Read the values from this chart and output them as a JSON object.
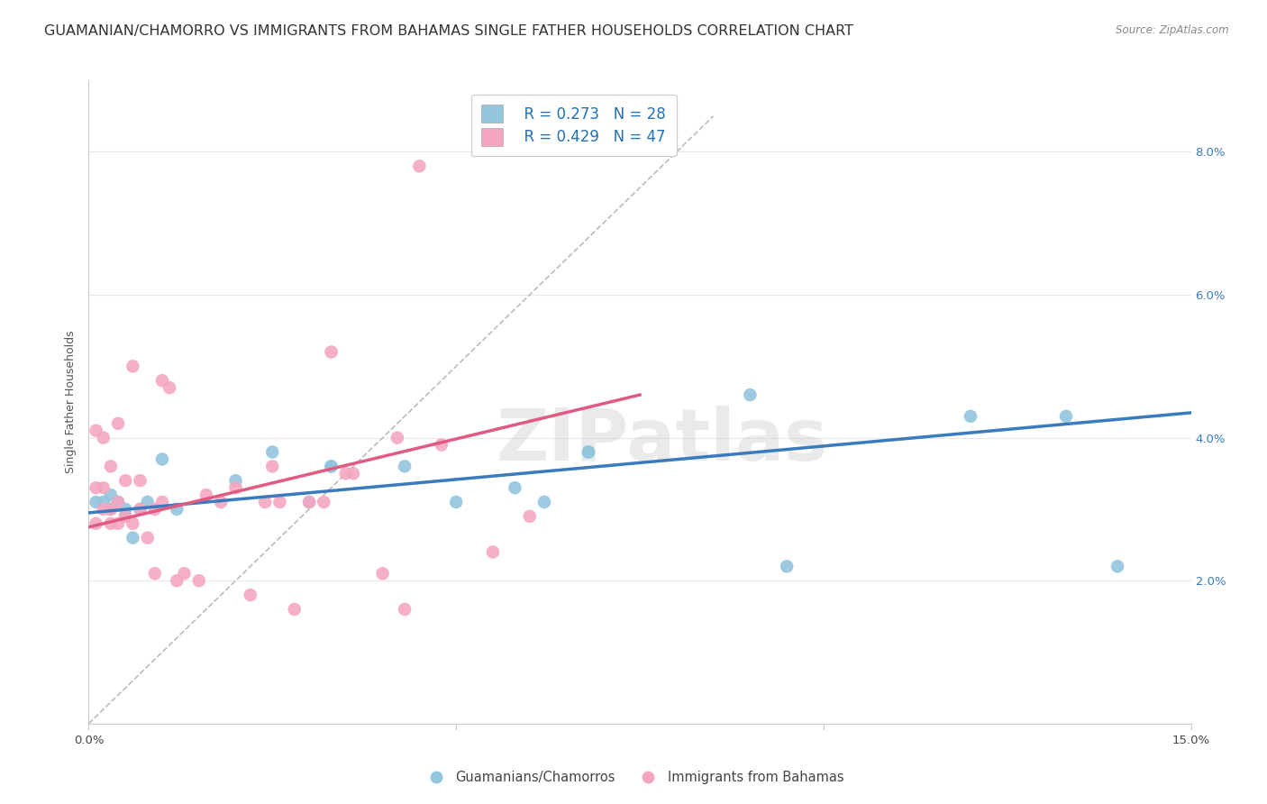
{
  "title": "GUAMANIAN/CHAMORRO VS IMMIGRANTS FROM BAHAMAS SINGLE FATHER HOUSEHOLDS CORRELATION CHART",
  "source": "Source: ZipAtlas.com",
  "ylabel": "Single Father Households",
  "xlim": [
    0.0,
    0.15
  ],
  "ylim": [
    0.0,
    0.09
  ],
  "blue_color": "#92c5de",
  "pink_color": "#f4a6c0",
  "blue_line_color": "#3a7bbf",
  "pink_line_color": "#e05a82",
  "diag_color": "#bbbbbb",
  "legend_blue_R": "R = 0.273",
  "legend_blue_N": "N = 28",
  "legend_pink_R": "R = 0.429",
  "legend_pink_N": "N = 47",
  "watermark": "ZIPatlas",
  "title_fontsize": 11.5,
  "label_fontsize": 9,
  "tick_fontsize": 9.5,
  "blue_scatter_x": [
    0.001,
    0.002,
    0.003,
    0.003,
    0.004,
    0.005,
    0.005,
    0.006,
    0.007,
    0.008,
    0.01,
    0.012,
    0.02,
    0.025,
    0.03,
    0.033,
    0.033,
    0.043,
    0.05,
    0.058,
    0.062,
    0.068,
    0.068,
    0.09,
    0.095,
    0.12,
    0.133,
    0.14
  ],
  "blue_scatter_y": [
    0.031,
    0.031,
    0.03,
    0.032,
    0.031,
    0.029,
    0.03,
    0.026,
    0.03,
    0.031,
    0.037,
    0.03,
    0.034,
    0.038,
    0.031,
    0.036,
    0.036,
    0.036,
    0.031,
    0.033,
    0.031,
    0.038,
    0.038,
    0.046,
    0.022,
    0.043,
    0.043,
    0.022
  ],
  "pink_scatter_x": [
    0.001,
    0.001,
    0.001,
    0.002,
    0.002,
    0.002,
    0.003,
    0.003,
    0.003,
    0.004,
    0.004,
    0.004,
    0.005,
    0.005,
    0.006,
    0.006,
    0.007,
    0.007,
    0.008,
    0.009,
    0.009,
    0.01,
    0.01,
    0.011,
    0.012,
    0.013,
    0.015,
    0.016,
    0.018,
    0.02,
    0.022,
    0.024,
    0.025,
    0.026,
    0.028,
    0.03,
    0.032,
    0.033,
    0.035,
    0.036,
    0.04,
    0.042,
    0.043,
    0.045,
    0.048,
    0.055,
    0.06
  ],
  "pink_scatter_y": [
    0.028,
    0.033,
    0.041,
    0.03,
    0.033,
    0.04,
    0.028,
    0.03,
    0.036,
    0.028,
    0.031,
    0.042,
    0.029,
    0.034,
    0.028,
    0.05,
    0.03,
    0.034,
    0.026,
    0.03,
    0.021,
    0.031,
    0.048,
    0.047,
    0.02,
    0.021,
    0.02,
    0.032,
    0.031,
    0.033,
    0.018,
    0.031,
    0.036,
    0.031,
    0.016,
    0.031,
    0.031,
    0.052,
    0.035,
    0.035,
    0.021,
    0.04,
    0.016,
    0.078,
    0.039,
    0.024,
    0.029
  ]
}
